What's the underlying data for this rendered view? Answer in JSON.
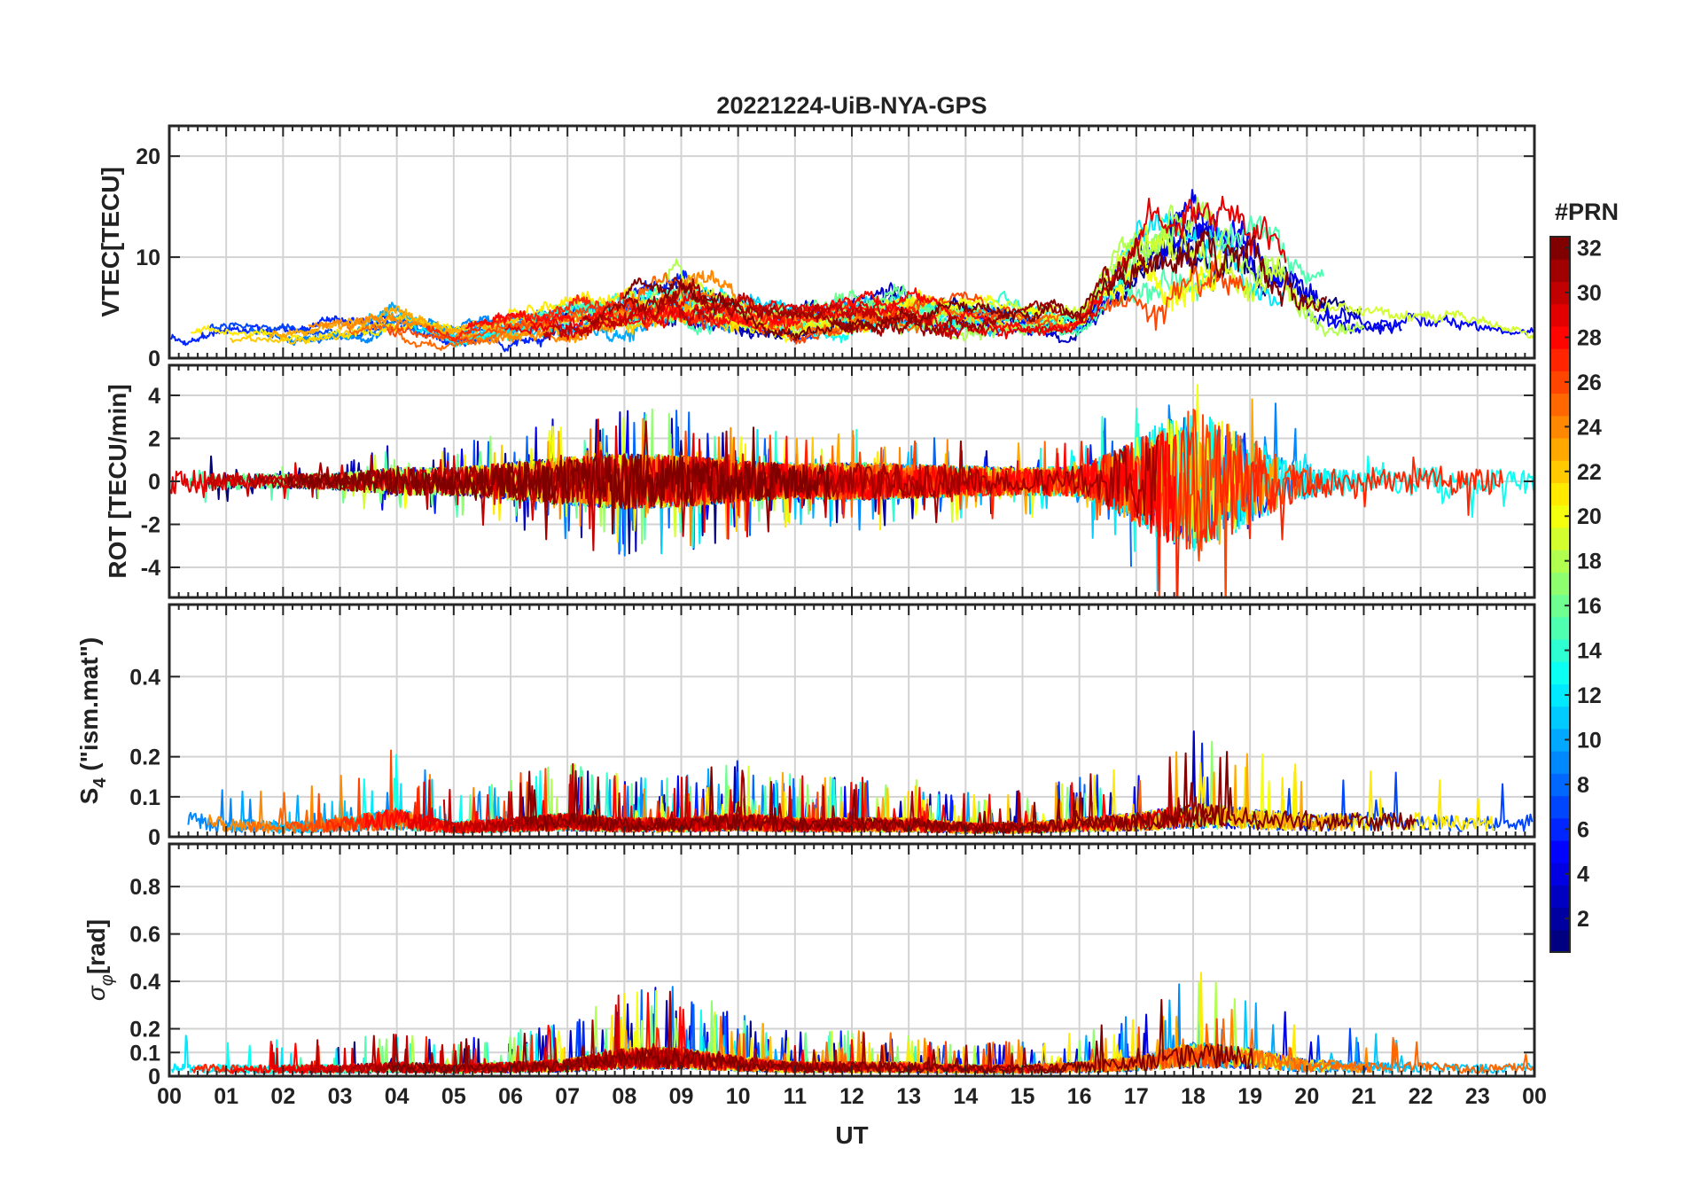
{
  "figure": {
    "title": "20221224-UiB-NYA-GPS",
    "xlabel": "UT",
    "x_ticks": [
      "00",
      "01",
      "02",
      "03",
      "04",
      "05",
      "06",
      "07",
      "08",
      "09",
      "10",
      "11",
      "12",
      "13",
      "14",
      "15",
      "16",
      "17",
      "18",
      "19",
      "20",
      "21",
      "22",
      "23",
      "00"
    ]
  },
  "colorbar": {
    "title": "#PRN",
    "colormap": "jet",
    "range": [
      1,
      32
    ],
    "tick_values": [
      2,
      4,
      6,
      8,
      10,
      12,
      14,
      16,
      18,
      20,
      22,
      24,
      26,
      28,
      30,
      32
    ],
    "tick_labels": [
      "2",
      "4",
      "6",
      "8",
      "10",
      "12",
      "14",
      "16",
      "18",
      "20",
      "22",
      "24",
      "26",
      "28",
      "30",
      "32"
    ]
  },
  "chart_data": [
    {
      "type": "line",
      "panel": "vtec",
      "ylabel": "VTEC[TECU]",
      "xlim": [
        0,
        24
      ],
      "ylim": [
        0,
        23
      ],
      "yticks": [
        0,
        10,
        20
      ],
      "ytick_labels": [
        "0",
        "10",
        "20"
      ],
      "grid": true,
      "envelope_x": [
        0,
        1,
        2,
        3,
        4,
        5,
        6,
        7,
        8,
        9,
        10,
        11,
        12,
        13,
        14,
        15,
        16,
        16.5,
        17,
        17.5,
        18,
        18.5,
        19,
        19.5,
        20,
        20.5,
        21,
        22,
        23,
        24
      ],
      "envelope_y": [
        3.0,
        3.4,
        3.2,
        3.4,
        4.8,
        3.0,
        4.2,
        5.0,
        6.2,
        7.5,
        5.8,
        5.0,
        5.5,
        6.2,
        5.4,
        4.8,
        4.5,
        8.5,
        12.0,
        14.0,
        15.0,
        15.5,
        14.5,
        13.0,
        9.0,
        6.5,
        5.8,
        5.2,
        4.2,
        3.0
      ]
    },
    {
      "type": "line",
      "panel": "rot",
      "ylabel": "ROT [TECU/min]",
      "xlim": [
        0,
        24
      ],
      "ylim": [
        -5.4,
        5.4
      ],
      "yticks": [
        -4,
        -2,
        0,
        2,
        4
      ],
      "ytick_labels": [
        "-4",
        "-2",
        "0",
        "2",
        "4"
      ],
      "grid": true,
      "envelope_x": [
        0,
        1,
        2,
        3,
        4,
        5,
        6,
        7,
        8,
        9,
        10,
        11,
        12,
        13,
        14,
        15,
        16,
        16.5,
        17,
        17.5,
        18,
        18.5,
        19,
        19.5,
        20,
        21,
        22,
        22.5,
        23,
        24
      ],
      "envelope_y": [
        0.8,
        0.5,
        0.4,
        0.5,
        0.8,
        0.8,
        1.1,
        1.4,
        1.6,
        1.5,
        1.2,
        1.0,
        1.1,
        1.0,
        0.9,
        0.8,
        0.9,
        1.6,
        2.5,
        3.6,
        4.2,
        3.6,
        2.6,
        1.6,
        1.0,
        0.8,
        0.8,
        1.0,
        0.7,
        0.7
      ]
    },
    {
      "type": "line",
      "panel": "s4",
      "ylabel_main": "S",
      "ylabel_sub": "4",
      "ylabel_rest": " (\"ism.mat\")",
      "xlim": [
        0,
        24
      ],
      "ylim": [
        0,
        0.58
      ],
      "yticks": [
        0,
        0.1,
        0.2,
        0.4
      ],
      "ytick_labels": [
        "0",
        "0.1",
        "0.2",
        "0.4"
      ],
      "grid": true,
      "envelope_x": [
        0,
        1,
        2,
        3,
        4,
        5,
        6,
        7,
        8,
        9,
        10,
        11,
        12,
        13,
        14,
        15,
        16,
        17,
        18,
        19,
        20,
        21,
        22,
        23,
        24
      ],
      "envelope_y": [
        0.06,
        0.04,
        0.03,
        0.04,
        0.06,
        0.03,
        0.04,
        0.05,
        0.04,
        0.04,
        0.05,
        0.04,
        0.04,
        0.04,
        0.03,
        0.03,
        0.04,
        0.05,
        0.07,
        0.06,
        0.05,
        0.05,
        0.05,
        0.04,
        0.05
      ]
    },
    {
      "type": "line",
      "panel": "sigma",
      "ylabel_main": "σ",
      "ylabel_sub": "φ",
      "ylabel_rest": "[rad]",
      "xlim": [
        0,
        24
      ],
      "ylim": [
        0,
        0.98
      ],
      "yticks": [
        0,
        0.1,
        0.2,
        0.4,
        0.6,
        0.8
      ],
      "ytick_labels": [
        "0",
        "0.1",
        "0.2",
        "0.4",
        "0.6",
        "0.8"
      ],
      "grid": true,
      "envelope_x": [
        0,
        1,
        2,
        3,
        4,
        5,
        6,
        7,
        8,
        9,
        10,
        11,
        12,
        13,
        14,
        15,
        16,
        17,
        18,
        19,
        20,
        21,
        22,
        23,
        24
      ],
      "envelope_y": [
        0.05,
        0.04,
        0.04,
        0.04,
        0.05,
        0.04,
        0.05,
        0.06,
        0.1,
        0.1,
        0.07,
        0.05,
        0.05,
        0.05,
        0.04,
        0.04,
        0.05,
        0.07,
        0.12,
        0.1,
        0.06,
        0.05,
        0.05,
        0.04,
        0.05
      ]
    }
  ]
}
